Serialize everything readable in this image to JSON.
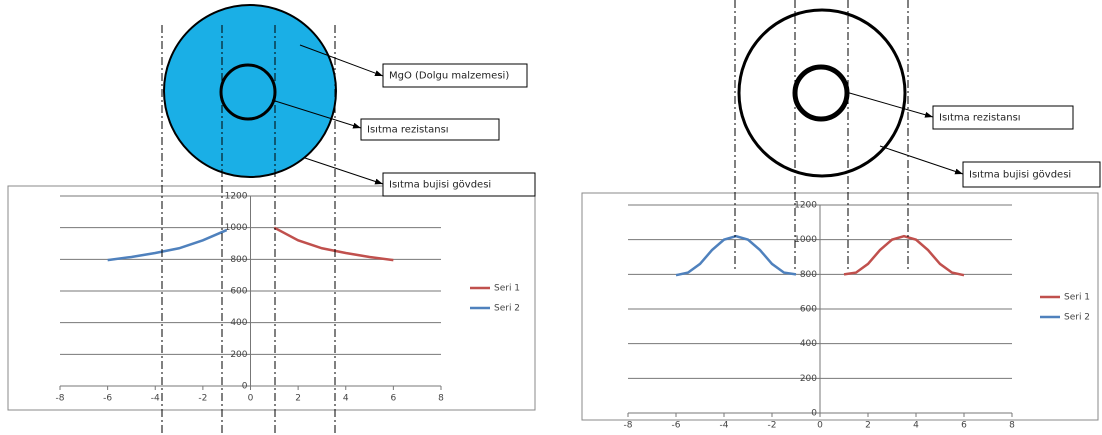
{
  "chart_data": [
    {
      "type": "line",
      "annotations": [
        "MgO (Dolgu malzemesi)",
        "Isıtma rezistansı",
        "Isıtma bujisi gövdesi"
      ],
      "xlim": [
        -8,
        8
      ],
      "xticks": [
        -8,
        -6,
        -4,
        -2,
        0,
        2,
        4,
        6,
        8
      ],
      "ylim": [
        0,
        1200
      ],
      "yticks": [
        0,
        200,
        400,
        600,
        800,
        1000,
        1200
      ],
      "grid": true,
      "legend": "right",
      "series": [
        {
          "name": "Seri 1",
          "color": "#c0504d",
          "x": [
            1,
            2,
            3,
            4,
            5,
            6
          ],
          "values": [
            1000,
            920,
            870,
            840,
            815,
            795
          ]
        },
        {
          "name": "Seri 2",
          "color": "#4f81bd",
          "x": [
            -6,
            -5,
            -4,
            -3,
            -2,
            -1
          ],
          "values": [
            795,
            815,
            840,
            870,
            920,
            985
          ]
        }
      ]
    },
    {
      "type": "line",
      "annotations": [
        "Isıtma rezistansı",
        "Isıtma bujisi gövdesi"
      ],
      "xlim": [
        -8,
        8
      ],
      "xticks": [
        -8,
        -6,
        -4,
        -2,
        0,
        2,
        4,
        6,
        8
      ],
      "ylim": [
        0,
        1200
      ],
      "yticks": [
        0,
        200,
        400,
        600,
        800,
        1000,
        1200
      ],
      "grid": true,
      "legend": "right",
      "series": [
        {
          "name": "Seri 1",
          "color": "#c0504d",
          "x": [
            1,
            1.5,
            2,
            2.5,
            3,
            3.5,
            4,
            4.5,
            5,
            5.5,
            6
          ],
          "values": [
            800,
            810,
            860,
            940,
            1000,
            1020,
            1000,
            940,
            860,
            810,
            795
          ]
        },
        {
          "name": "Seri 2",
          "color": "#4f81bd",
          "x": [
            -6,
            -5.5,
            -5,
            -4.5,
            -4,
            -3.5,
            -3,
            -2.5,
            -2,
            -1.5,
            -1
          ],
          "values": [
            795,
            810,
            860,
            940,
            1000,
            1020,
            1000,
            940,
            860,
            810,
            800
          ]
        }
      ]
    }
  ]
}
